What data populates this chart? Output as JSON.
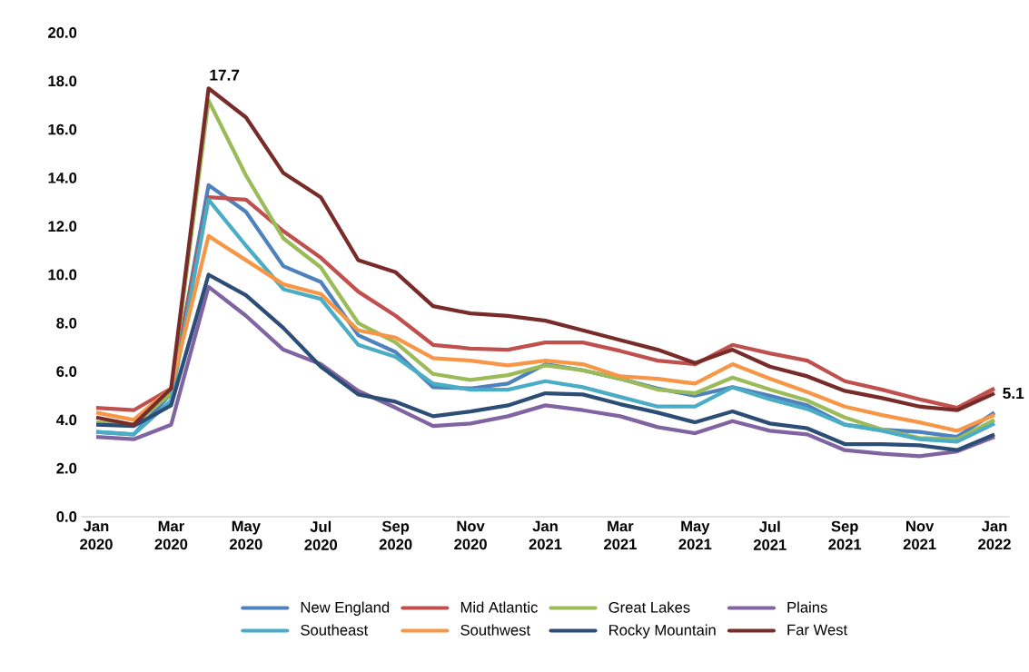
{
  "chart_data": {
    "type": "line",
    "categories": [
      "Jan 2020",
      null,
      "Mar 2020",
      null,
      "May 2020",
      null,
      "Jul 2020",
      null,
      "Sep 2020",
      null,
      "Nov 2020",
      null,
      "Jan 2021",
      null,
      "Mar 2021",
      null,
      "May 2021",
      null,
      "Jul 2021",
      null,
      "Sep 2021",
      null,
      "Nov 2021",
      null,
      "Jan 2022"
    ],
    "series": [
      {
        "name": "New England",
        "color": "#4f81bd",
        "values": [
          3.5,
          3.4,
          5.1,
          13.7,
          12.6,
          10.35,
          9.7,
          7.5,
          6.8,
          5.35,
          5.3,
          5.5,
          6.3,
          6.05,
          5.7,
          5.3,
          5.0,
          5.35,
          5.0,
          4.6,
          3.8,
          3.6,
          3.5,
          3.3,
          4.3
        ]
      },
      {
        "name": "Mid Atlantic",
        "color": "#c0504d",
        "values": [
          4.5,
          4.4,
          5.3,
          13.2,
          13.1,
          11.8,
          10.7,
          9.3,
          8.3,
          7.1,
          6.95,
          6.9,
          7.2,
          7.2,
          6.85,
          6.45,
          6.3,
          7.1,
          6.75,
          6.45,
          5.6,
          5.25,
          4.85,
          4.5,
          5.3
        ]
      },
      {
        "name": "Great Lakes",
        "color": "#9bbb59",
        "values": [
          3.9,
          3.8,
          5.1,
          17.2,
          14.1,
          11.5,
          10.3,
          8.0,
          7.2,
          5.9,
          5.65,
          5.85,
          6.25,
          6.05,
          5.7,
          5.25,
          5.1,
          5.75,
          5.25,
          4.8,
          4.1,
          3.6,
          3.25,
          3.2,
          4.0
        ]
      },
      {
        "name": "Plains",
        "color": "#8064a2",
        "values": [
          3.3,
          3.2,
          3.8,
          9.5,
          8.3,
          6.9,
          6.3,
          5.2,
          4.5,
          3.75,
          3.85,
          4.15,
          4.6,
          4.4,
          4.15,
          3.7,
          3.45,
          3.95,
          3.55,
          3.4,
          2.75,
          2.6,
          2.5,
          2.7,
          3.3
        ]
      },
      {
        "name": "Southeast",
        "color": "#4bacc6",
        "values": [
          3.5,
          3.4,
          4.8,
          13.1,
          11.2,
          9.4,
          9.0,
          7.1,
          6.6,
          5.5,
          5.25,
          5.25,
          5.6,
          5.35,
          4.95,
          4.55,
          4.55,
          5.35,
          4.85,
          4.45,
          3.8,
          3.55,
          3.2,
          3.1,
          3.85
        ]
      },
      {
        "name": "Southwest",
        "color": "#f79646",
        "values": [
          4.3,
          4.0,
          5.3,
          11.6,
          10.6,
          9.6,
          9.2,
          7.7,
          7.4,
          6.55,
          6.45,
          6.25,
          6.45,
          6.3,
          5.8,
          5.7,
          5.5,
          6.3,
          5.7,
          5.15,
          4.55,
          4.2,
          3.9,
          3.55,
          4.2
        ]
      },
      {
        "name": "Rocky Mountain",
        "color": "#2c4d75",
        "values": [
          3.8,
          3.75,
          4.6,
          10.0,
          9.15,
          7.8,
          6.2,
          5.05,
          4.75,
          4.15,
          4.35,
          4.6,
          5.1,
          5.05,
          4.65,
          4.3,
          3.9,
          4.35,
          3.85,
          3.65,
          3.0,
          3.0,
          2.95,
          2.75,
          3.4
        ]
      },
      {
        "name": "Far West",
        "color": "#772c2a",
        "values": [
          4.1,
          3.8,
          5.3,
          17.7,
          16.5,
          14.2,
          13.2,
          10.6,
          10.1,
          8.7,
          8.4,
          8.3,
          8.1,
          7.7,
          7.3,
          6.9,
          6.35,
          6.9,
          6.2,
          5.8,
          5.2,
          4.9,
          4.55,
          4.4,
          5.1
        ]
      }
    ],
    "ylim": [
      0,
      20
    ],
    "yticks": [
      {
        "value": 0,
        "label": "0.0"
      },
      {
        "value": 2,
        "label": "2.0"
      },
      {
        "value": 4,
        "label": "4.0"
      },
      {
        "value": 6,
        "label": "6.0"
      },
      {
        "value": 8,
        "label": "8.0"
      },
      {
        "value": 10,
        "label": "10.0"
      },
      {
        "value": 12,
        "label": "12.0"
      },
      {
        "value": 14,
        "label": "14.0"
      },
      {
        "value": 16,
        "label": "16.0"
      },
      {
        "value": 18,
        "label": "18.0"
      },
      {
        "value": 20,
        "label": "20.0"
      }
    ],
    "annotations": [
      "17.7",
      "5.1"
    ],
    "legend": "bottom",
    "grid": false,
    "marker": "none",
    "line_style": "solid"
  }
}
